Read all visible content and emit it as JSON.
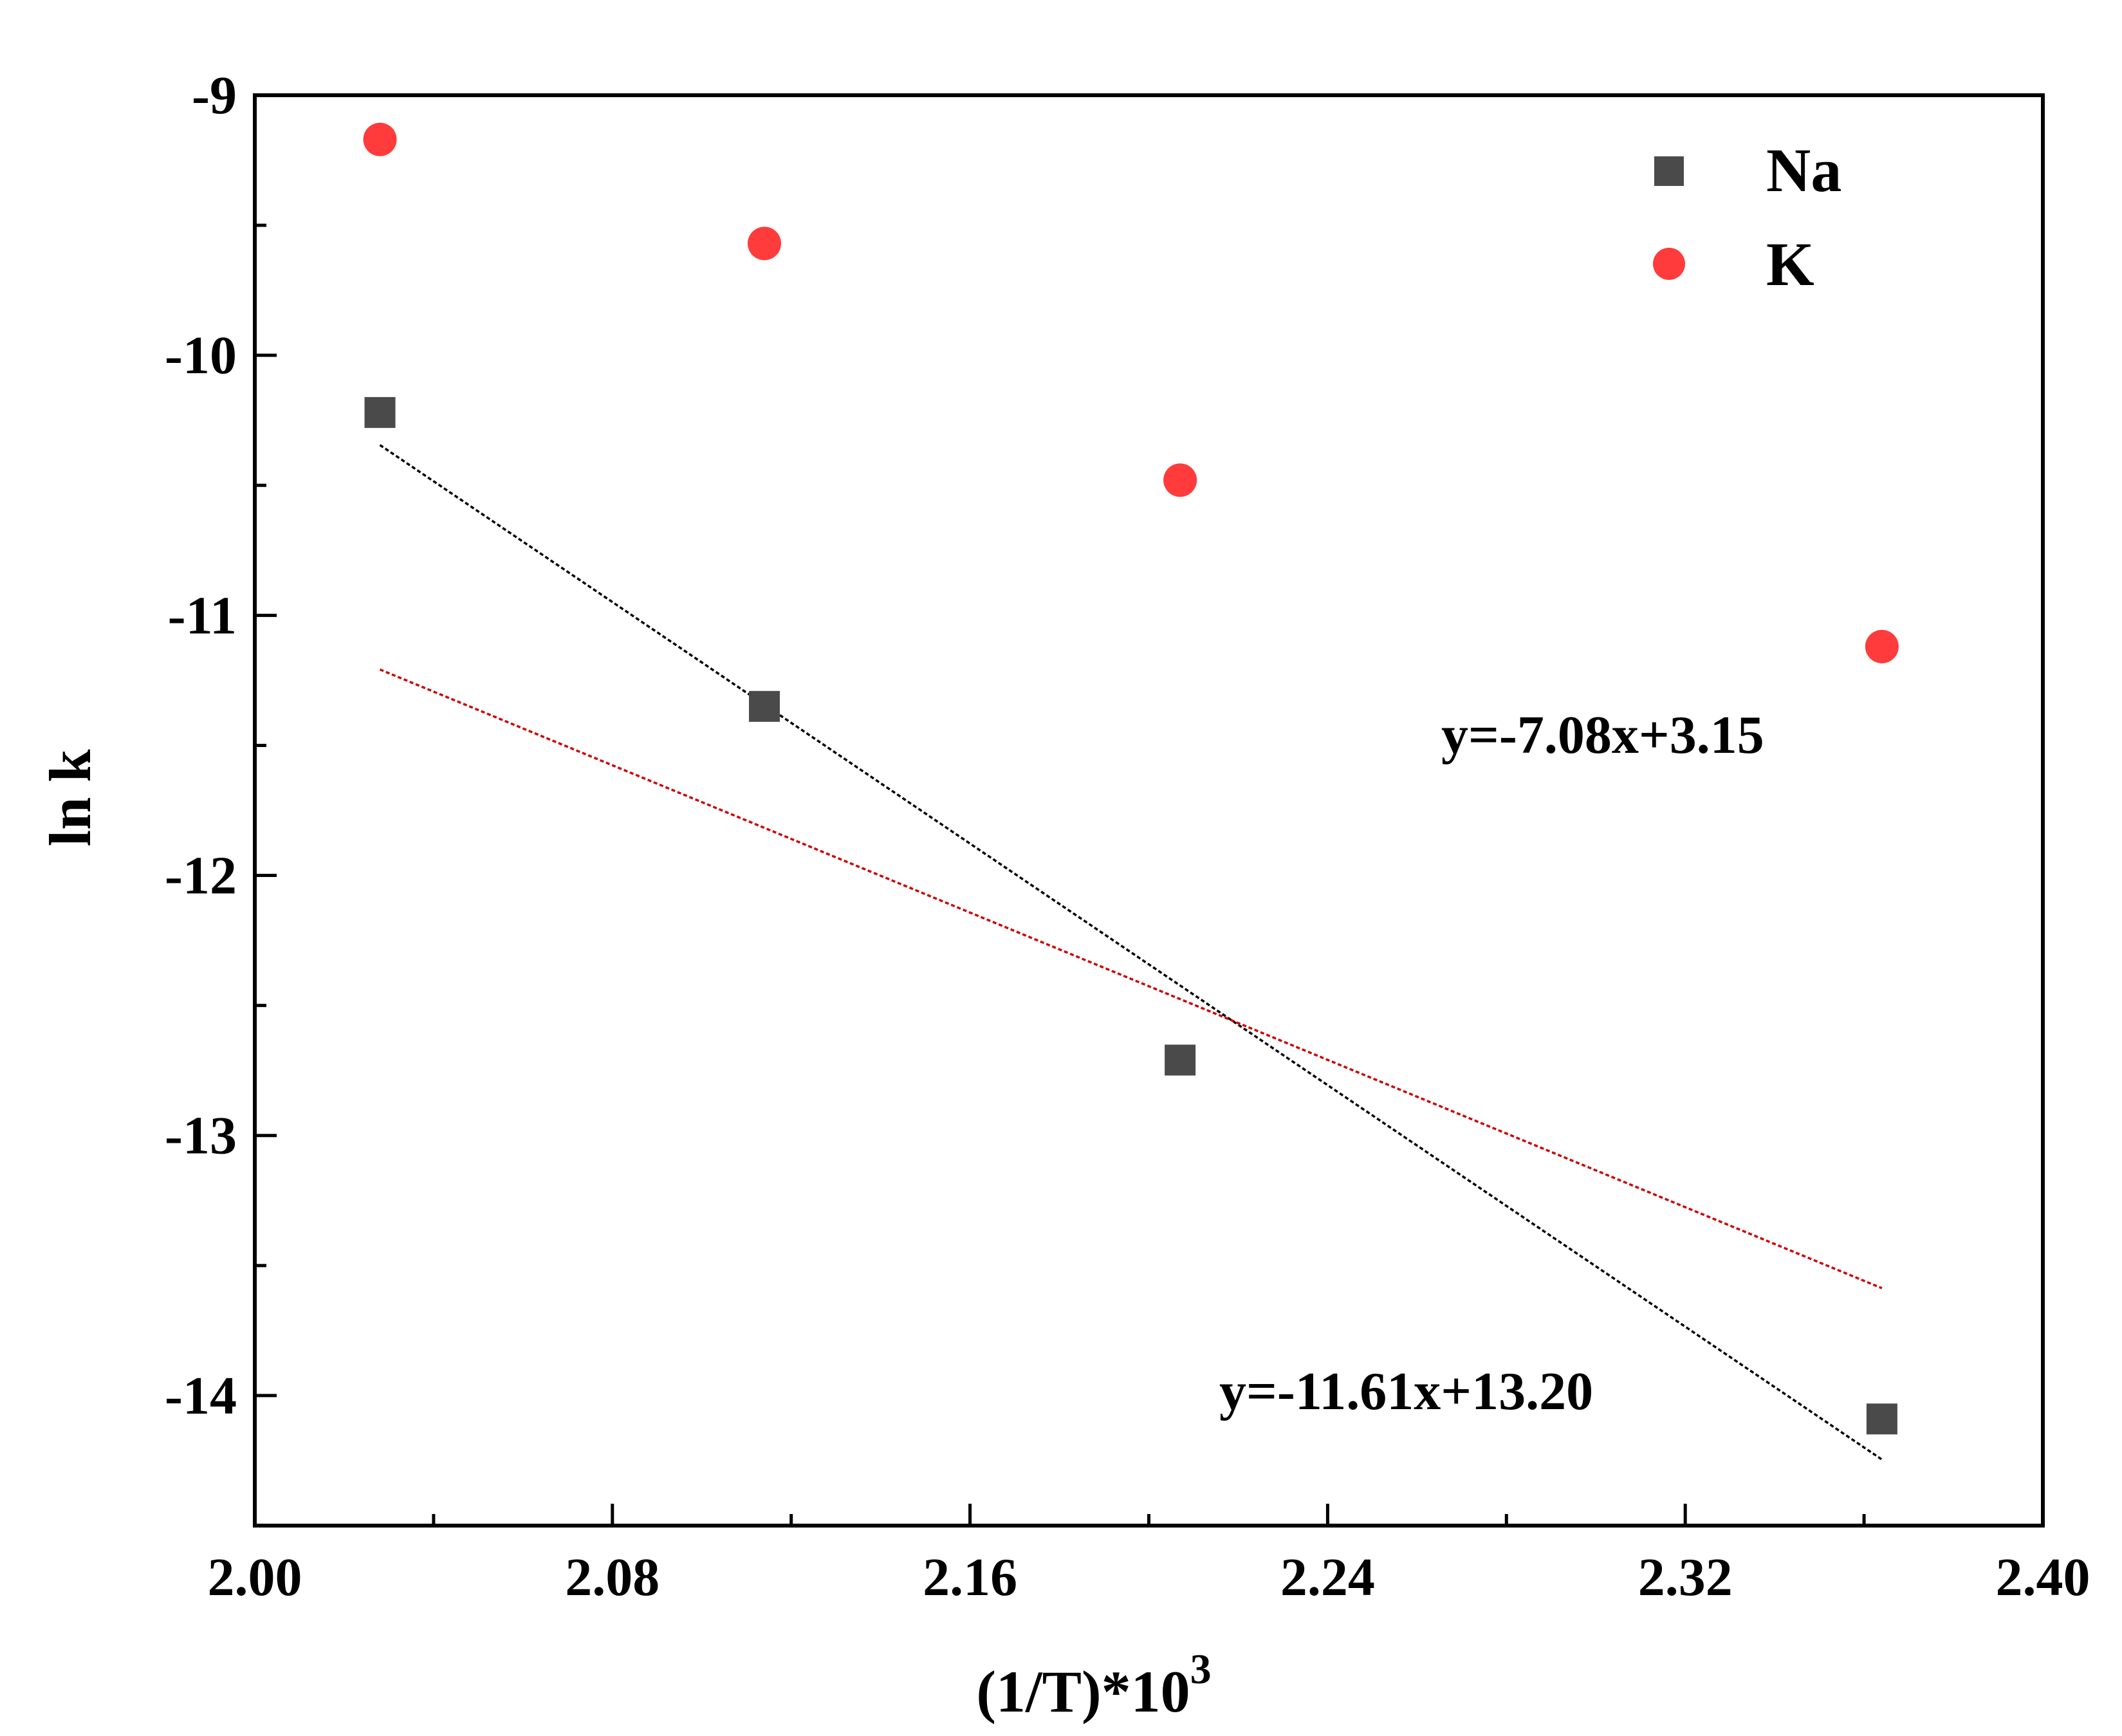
{
  "chart_data": {
    "type": "scatter",
    "title": "",
    "xlabel": "(1/T)*10",
    "xlabel_superscript": "3",
    "ylabel": "ln k",
    "xlim": [
      2.0,
      2.4
    ],
    "ylim": [
      -14.5,
      -9.0
    ],
    "x_ticks": [
      "2.00",
      "2.08",
      "2.16",
      "2.24",
      "2.32",
      "2.40"
    ],
    "y_ticks": [
      "-9",
      "-10",
      "-11",
      "-12",
      "-13",
      "-14"
    ],
    "grid": false,
    "legend_position": "top-right",
    "series": [
      {
        "name": "Na",
        "marker": "square",
        "color": "#4a4a4a",
        "x": [
          2.028,
          2.114,
          2.207,
          2.364
        ],
        "y": [
          -10.22,
          -11.35,
          -12.71,
          -14.09
        ],
        "fit": {
          "slope": -11.61,
          "intercept": 13.2,
          "label": "y=-11.61x+13.20",
          "color": "#000000"
        }
      },
      {
        "name": "K",
        "marker": "circle",
        "color": "#ff3b3b",
        "x": [
          2.028,
          2.114,
          2.207,
          2.364
        ],
        "y": [
          -9.17,
          -9.57,
          -10.48,
          -11.12
        ],
        "fit": {
          "slope": -7.08,
          "intercept": 3.15,
          "label": "y=-7.08x+3.15",
          "color": "#cc0000"
        }
      }
    ]
  }
}
